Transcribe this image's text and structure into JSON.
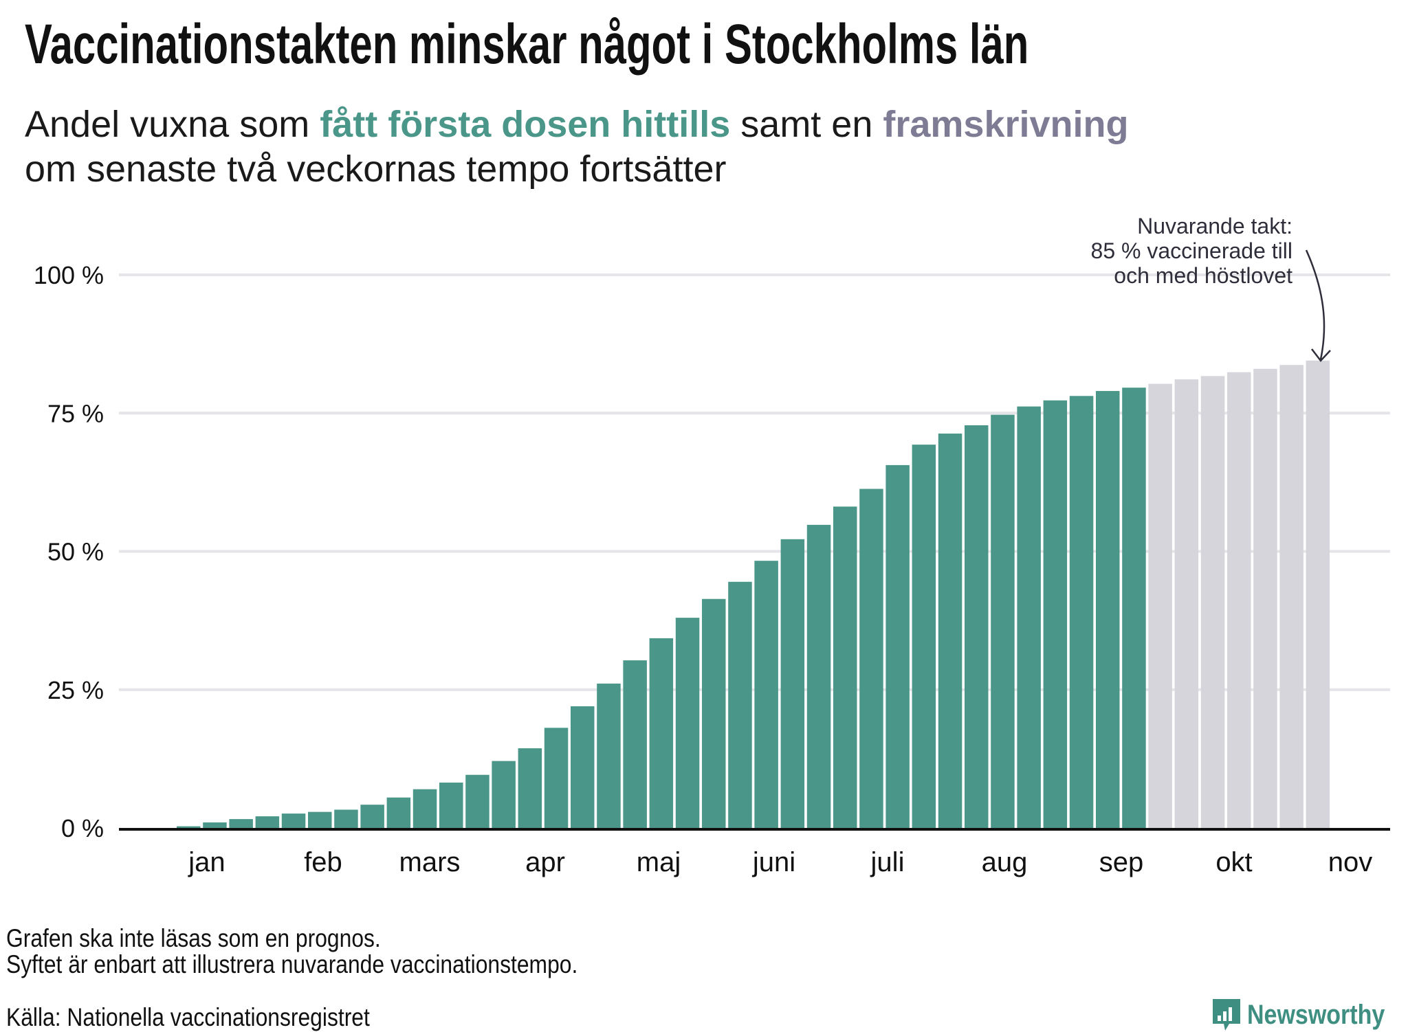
{
  "chart_data": {
    "type": "bar",
    "title": "Vaccinationstakten minskar något i Stockholms län",
    "subtitle": {
      "part1": "Andel vuxna som ",
      "highlight_actual": "fått första dosen hittills",
      "part2": " samt en ",
      "highlight_projection": "framskrivning",
      "line2": "om senaste två veckornas tempo fortsätter"
    },
    "xlabel": "",
    "ylabel": "",
    "ylim": [
      0,
      100
    ],
    "yticks": [
      0,
      25,
      50,
      75,
      100
    ],
    "ytick_labels": [
      "0 %",
      "25 %",
      "50 %",
      "75 %",
      "100 %"
    ],
    "xtick_labels": [
      "jan",
      "feb",
      "mars",
      "apr",
      "maj",
      "juni",
      "juli",
      "aug",
      "sep",
      "okt",
      "nov"
    ],
    "grid": true,
    "series": [
      {
        "name": "fått första dosen hittills",
        "color": "#4a978a",
        "values": [
          0.3,
          1.0,
          1.6,
          2.1,
          2.6,
          2.9,
          3.3,
          4.2,
          5.5,
          7.0,
          8.2,
          9.6,
          12.1,
          14.4,
          18.1,
          22.0,
          26.1,
          30.3,
          34.3,
          38.0,
          41.4,
          44.5,
          48.3,
          52.2,
          54.8,
          58.1,
          61.3,
          65.6,
          69.3,
          71.3,
          72.8,
          74.7,
          76.2,
          77.3,
          78.1,
          79.0,
          79.6
        ]
      },
      {
        "name": "framskrivning",
        "color": "#d5d5db",
        "values": [
          80.3,
          81.1,
          81.7,
          82.4,
          83.0,
          83.7,
          84.5
        ]
      }
    ],
    "annotation": {
      "lines": [
        "Nuvarande takt:",
        "85 % vaccinerade till",
        "och med höstlovet"
      ]
    }
  },
  "footer": {
    "note1": "Grafen ska inte läsas som en prognos.",
    "note2": "Syftet är enbart att illustrera nuvarande vaccinationstempo.",
    "source": "Källa: Nationella vaccinationsregistret"
  },
  "brand": {
    "name": "Newsworthy",
    "icon": "bar-chart-speech-bubble-icon",
    "color": "#3e8f82"
  }
}
